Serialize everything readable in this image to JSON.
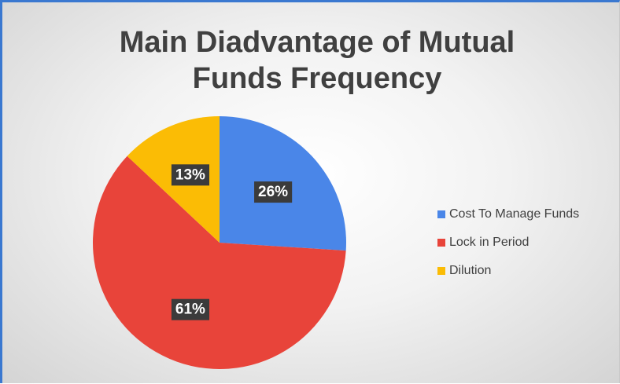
{
  "chart_data": {
    "type": "pie",
    "title": "Main Diadvantage of Mutual Funds Frequency",
    "categories": [
      "Cost To Manage Funds",
      "Lock in Period",
      "Dilution"
    ],
    "values": [
      26,
      61,
      13
    ],
    "value_labels": [
      "26%",
      "61%",
      "13%"
    ],
    "colors": [
      "#4a86e8",
      "#e8443a",
      "#fbbc05"
    ],
    "legend": "right"
  }
}
